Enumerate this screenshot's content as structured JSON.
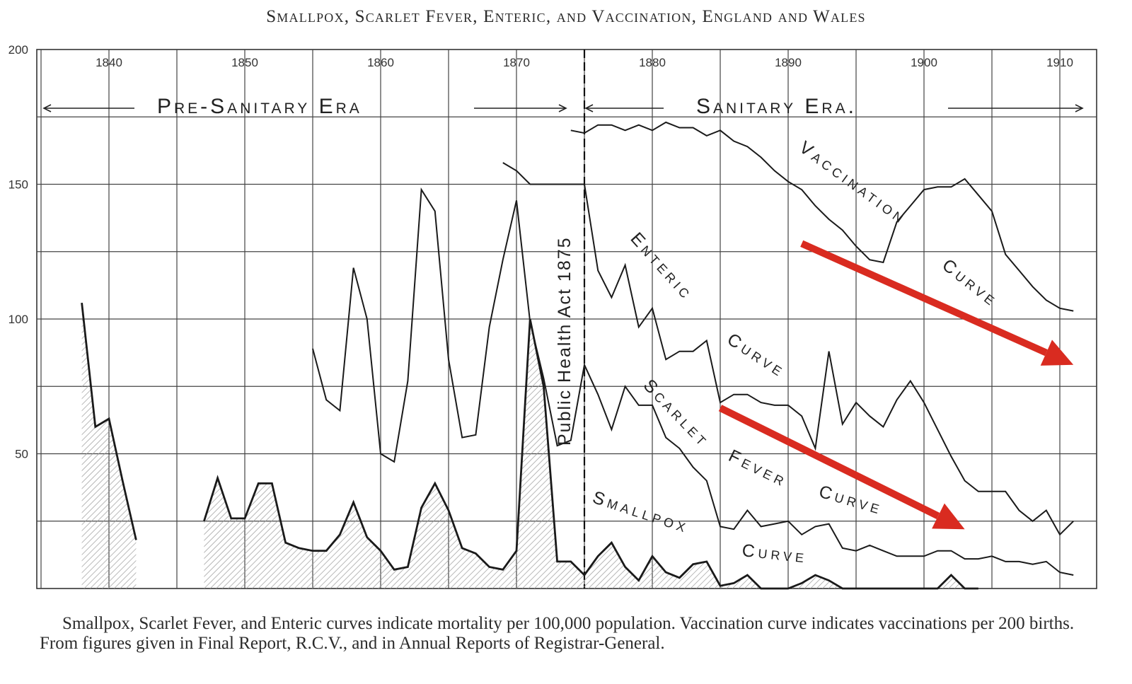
{
  "chart_data": {
    "type": "line",
    "title": "Smallpox, Scarlet Fever, Enteric, and Vaccination, England and Wales",
    "x_ticks": [
      1840,
      1850,
      1860,
      1870,
      1880,
      1890,
      1900,
      1910
    ],
    "y_ticks": [
      200,
      150,
      100,
      50
    ],
    "xlim": [
      1835,
      1913
    ],
    "ylim": [
      0,
      200
    ],
    "grid": true,
    "annotations": {
      "pre_sanitary": "Pre-Sanitary Era",
      "sanitary": "Sanitary Era.",
      "act": "Public Health Act 1875",
      "act_year": 1875
    },
    "series": [
      {
        "name": "Vaccination Curve",
        "color": "#1a1a1a",
        "x": [
          1872,
          1874,
          1875,
          1876,
          1877,
          1878,
          1879,
          1880,
          1881,
          1882,
          1883,
          1884,
          1885,
          1886,
          1887,
          1888,
          1889,
          1890,
          1891,
          1892,
          1893,
          1894,
          1895,
          1896,
          1897,
          1898,
          1899,
          1900,
          1901,
          1902,
          1903,
          1904,
          1905,
          1906,
          1907,
          1908,
          1909,
          1910,
          1911
        ],
        "values": [
          170,
          170,
          169,
          172,
          172,
          170,
          172,
          170,
          173,
          171,
          171,
          168,
          170,
          166,
          164,
          160,
          155,
          151,
          148,
          142,
          137,
          133,
          127,
          122,
          121,
          136,
          142,
          148,
          149,
          149,
          152,
          146,
          140,
          124,
          118,
          112,
          107,
          104,
          103
        ],
        "mode": "vaccination"
      },
      {
        "name": "Enteric Curve",
        "color": "#1a1a1a",
        "x": [
          1869,
          1870,
          1871,
          1872,
          1873,
          1874,
          1875,
          1876,
          1877,
          1878,
          1879,
          1880,
          1881,
          1882,
          1883,
          1884,
          1885,
          1886,
          1887,
          1888,
          1889,
          1890,
          1891,
          1892,
          1893,
          1894,
          1895,
          1896,
          1897,
          1898,
          1899,
          1900,
          1901,
          1902,
          1903,
          1904,
          1905,
          1906,
          1907,
          1908,
          1909,
          1910,
          1911
        ],
        "values": [
          158,
          155,
          150,
          150,
          150,
          150,
          150,
          118,
          108,
          120,
          97,
          104,
          85,
          88,
          88,
          92,
          69,
          72,
          72,
          69,
          68,
          68,
          64,
          52,
          88,
          61,
          69,
          64,
          60,
          70,
          77,
          69,
          59,
          49,
          40,
          36,
          36,
          36,
          29,
          25,
          29,
          20,
          25
        ],
        "mode": "enteric"
      },
      {
        "name": "Scarlet Fever Curve",
        "color": "#1a1a1a",
        "x": [
          1855,
          1856,
          1857,
          1858,
          1859,
          1860,
          1861,
          1862,
          1863,
          1864,
          1865,
          1866,
          1867,
          1868,
          1869,
          1870,
          1871,
          1872,
          1873,
          1874,
          1875,
          1876,
          1877,
          1878,
          1879,
          1880,
          1881,
          1882,
          1883,
          1884,
          1885,
          1886,
          1887,
          1888,
          1889,
          1890,
          1891,
          1892,
          1893,
          1894,
          1895,
          1896,
          1897,
          1898,
          1899,
          1900,
          1901,
          1902,
          1903,
          1904,
          1905,
          1906,
          1907,
          1908,
          1909,
          1910,
          1911
        ],
        "values": [
          89,
          70,
          66,
          119,
          100,
          50,
          47,
          77,
          148,
          140,
          85,
          56,
          57,
          97,
          122,
          144,
          99,
          78,
          53,
          55,
          83,
          72,
          59,
          75,
          68,
          68,
          56,
          52,
          45,
          40,
          23,
          22,
          29,
          23,
          24,
          25,
          20,
          23,
          24,
          15,
          14,
          16,
          14,
          12,
          12,
          12,
          14,
          14,
          11,
          11,
          12,
          10,
          10,
          9,
          10,
          6,
          5
        ],
        "mode": "scarlet"
      },
      {
        "name": "Smallpox Curve",
        "color": "#1a1a1a",
        "x": [
          1838,
          1839,
          1840,
          1841,
          1842,
          1847,
          1848,
          1849,
          1850,
          1851,
          1852,
          1853,
          1854,
          1855,
          1856,
          1857,
          1858,
          1859,
          1860,
          1861,
          1862,
          1863,
          1864,
          1865,
          1866,
          1867,
          1868,
          1869,
          1870,
          1871,
          1872,
          1873,
          1874,
          1875,
          1876,
          1877,
          1878,
          1879,
          1880,
          1881,
          1882,
          1883,
          1884,
          1885,
          1886,
          1887,
          1888,
          1889,
          1890,
          1891,
          1892,
          1893,
          1894,
          1895,
          1896,
          1897,
          1898,
          1899,
          1900,
          1901,
          1902,
          1903,
          1904
        ],
        "values": [
          106,
          60,
          63,
          40,
          18,
          25,
          41,
          26,
          26,
          39,
          39,
          17,
          15,
          14,
          14,
          20,
          32,
          19,
          14,
          7,
          8,
          30,
          39,
          29,
          15,
          13,
          8,
          7,
          14,
          100,
          75,
          10,
          10,
          5,
          12,
          17,
          8,
          3,
          12,
          6,
          4,
          9,
          10,
          1,
          2,
          5,
          0,
          0,
          0,
          2,
          5,
          3,
          0,
          0,
          0,
          0,
          0,
          0,
          0,
          0,
          5,
          0,
          0
        ],
        "mode": "smallpox"
      }
    ],
    "highlight_arrows": [
      {
        "color": "#d92b20",
        "from": [
          1891,
          128
        ],
        "to": [
          1911,
          83
        ]
      },
      {
        "color": "#d92b20",
        "from": [
          1885,
          67
        ],
        "to": [
          1903,
          22
        ]
      }
    ]
  },
  "caption": {
    "lead": "Smallpox, Scarlet Fever, and Enteric curves indicate mortality per 100,000 population.",
    "rest": "Vaccination curve indicates vaccinations per 200 births. From figures given in Final Report, R.C.V., and in Annual Reports of Registrar-General."
  },
  "labels": {
    "vaccination": "Vaccination",
    "vaccination_curve": "Curve",
    "enteric": "Enteric",
    "enteric_curve": "Curve",
    "scarlet": "Scarlet",
    "fever": "Fever",
    "scarlet_curve": "Curve",
    "smallpox": "Smallpox",
    "smallpox_curve": "Curve"
  }
}
